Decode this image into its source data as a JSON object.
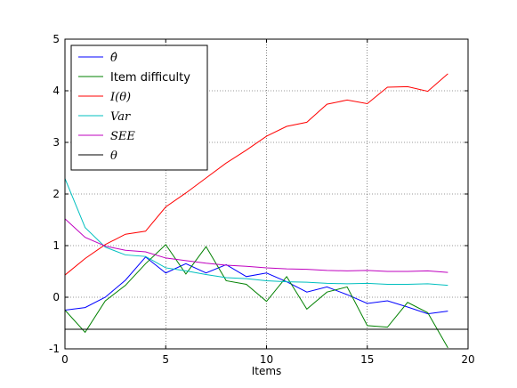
{
  "chart_data": {
    "type": "line",
    "xlabel": "Items",
    "ylabel": "",
    "xlim": [
      0,
      20
    ],
    "ylim": [
      -1,
      5
    ],
    "xticks": [
      0,
      5,
      10,
      15,
      20
    ],
    "yticks": [
      -1,
      0,
      1,
      2,
      3,
      4,
      5
    ],
    "grid": true,
    "legend_position": "top-left",
    "x": [
      0,
      1,
      2,
      3,
      4,
      5,
      6,
      7,
      8,
      9,
      10,
      11,
      12,
      13,
      14,
      15,
      16,
      17,
      18,
      19
    ],
    "series": [
      {
        "name": "θ̂",
        "color": "#0000ff",
        "values": [
          -0.25,
          -0.2,
          0.0,
          0.33,
          0.78,
          0.47,
          0.65,
          0.47,
          0.63,
          0.4,
          0.47,
          0.3,
          0.1,
          0.2,
          0.05,
          -0.12,
          -0.07,
          -0.19,
          -0.32,
          -0.27
        ]
      },
      {
        "name": "Item difficulty",
        "color": "#008000",
        "values": [
          -0.25,
          -0.68,
          -0.07,
          0.23,
          0.65,
          1.02,
          0.45,
          0.98,
          0.32,
          0.25,
          -0.08,
          0.4,
          -0.23,
          0.1,
          0.2,
          -0.55,
          -0.58,
          -0.1,
          -0.3,
          -0.98
        ]
      },
      {
        "name": "I(θ)",
        "color": "#ff0000",
        "values": [
          0.43,
          0.75,
          1.02,
          1.22,
          1.28,
          1.75,
          2.02,
          2.31,
          2.6,
          2.85,
          3.12,
          3.31,
          3.39,
          3.74,
          3.82,
          3.75,
          4.07,
          4.08,
          3.99,
          4.33
        ]
      },
      {
        "name": "Var",
        "color": "#00bfbf",
        "values": [
          2.3,
          1.35,
          0.97,
          0.82,
          0.79,
          0.57,
          0.51,
          0.44,
          0.38,
          0.36,
          0.32,
          0.3,
          0.29,
          0.27,
          0.26,
          0.27,
          0.25,
          0.25,
          0.26,
          0.23
        ]
      },
      {
        "name": "SEE",
        "color": "#bf00bf",
        "values": [
          1.52,
          1.16,
          0.99,
          0.91,
          0.88,
          0.76,
          0.71,
          0.66,
          0.62,
          0.6,
          0.57,
          0.55,
          0.54,
          0.52,
          0.51,
          0.52,
          0.5,
          0.5,
          0.51,
          0.48
        ]
      }
    ],
    "hlines": [
      {
        "name": "θ",
        "color": "#000000",
        "y": -0.62
      }
    ]
  }
}
